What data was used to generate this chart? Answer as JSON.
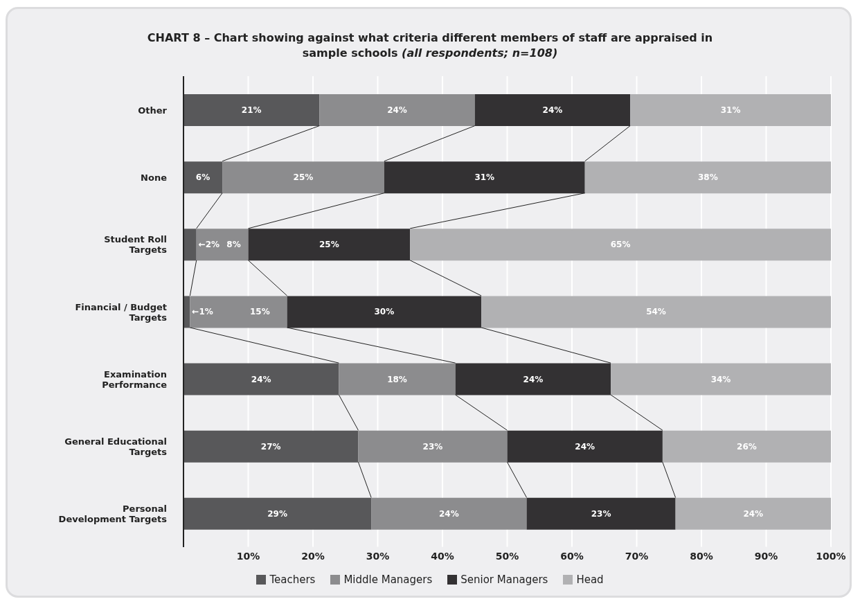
{
  "chart_data": {
    "type": "bar",
    "orientation": "horizontal",
    "stacked": true,
    "title": "CHART 8 – Chart showing against what criteria different members of staff are appraised in sample schools",
    "subtitle": "(all respondents; n=108)",
    "categories": [
      "Other",
      "None",
      "Student Roll Targets",
      "Financial / Budget Targets",
      "Examination Performance",
      "General Educational Targets",
      "Personal Development Targets"
    ],
    "series": [
      {
        "name": "Teachers",
        "color": "#58585a",
        "values": [
          21,
          6,
          2,
          1,
          24,
          27,
          29
        ],
        "value_labels": [
          "21%",
          "6%",
          "←2%",
          "←1%",
          "24%",
          "27%",
          "29%"
        ]
      },
      {
        "name": "Middle Managers",
        "color": "#8c8c8e",
        "values": [
          24,
          25,
          8,
          15,
          18,
          23,
          24
        ],
        "value_labels": [
          "24%",
          "25%",
          "8%",
          "15%",
          "18%",
          "23%",
          "24%"
        ]
      },
      {
        "name": "Senior Managers",
        "color": "#333133",
        "values": [
          24,
          31,
          25,
          30,
          24,
          24,
          23
        ],
        "value_labels": [
          "24%",
          "31%",
          "25%",
          "30%",
          "24%",
          "24%",
          "23%"
        ]
      },
      {
        "name": "Head",
        "color": "#b1b1b3",
        "values": [
          31,
          38,
          65,
          54,
          34,
          26,
          24
        ],
        "value_labels": [
          "31%",
          "38%",
          "65%",
          "54%",
          "34%",
          "26%",
          "24%"
        ]
      }
    ],
    "xlim": [
      0,
      100
    ],
    "xticks": [
      {
        "value": 0,
        "label": null
      },
      {
        "value": 10,
        "label": "10%"
      },
      {
        "value": 20,
        "label": "20%"
      },
      {
        "value": 30,
        "label": "30%"
      },
      {
        "value": 40,
        "label": "40%"
      },
      {
        "value": 50,
        "label": "50%"
      },
      {
        "value": 60,
        "label": "60%"
      },
      {
        "value": 70,
        "label": "70%"
      },
      {
        "value": 80,
        "label": "80%"
      },
      {
        "value": 90,
        "label": "90%"
      },
      {
        "value": 100,
        "label": "100%"
      }
    ],
    "grid": "x",
    "legend": "bottom"
  }
}
